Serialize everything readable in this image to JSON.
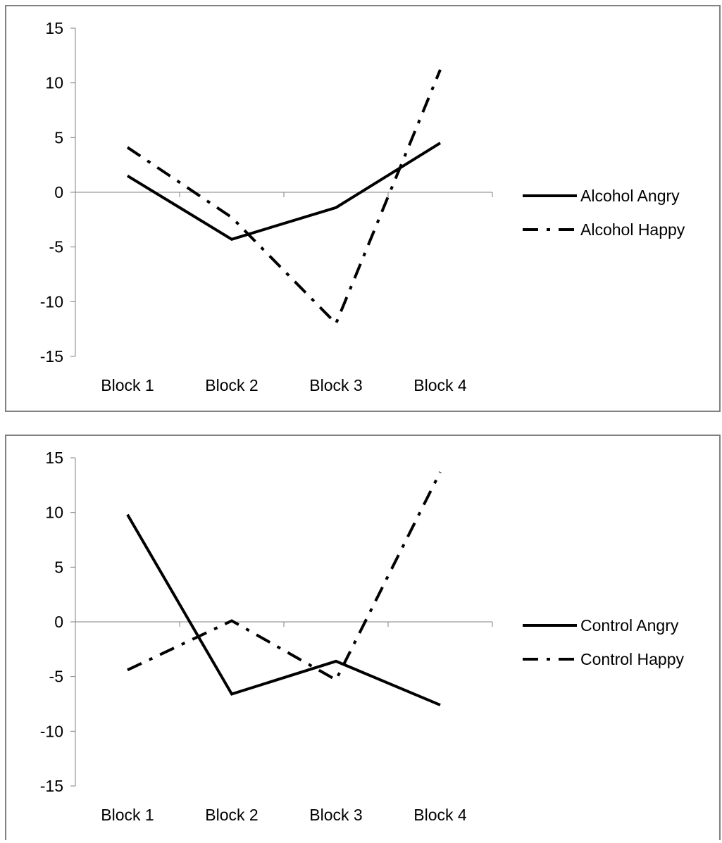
{
  "chart_data": [
    {
      "type": "line",
      "categories": [
        "Block 1",
        "Block 2",
        "Block 3",
        "Block 4"
      ],
      "ylim": [
        -15,
        15
      ],
      "yticks": [
        15,
        10,
        5,
        0,
        -5,
        -10,
        -15
      ],
      "grid": false,
      "legend_position": "right",
      "series": [
        {
          "name": "Alcohol Angry",
          "style": "solid",
          "color": "#000000",
          "values": [
            1.5,
            -4.3,
            -1.4,
            4.5
          ]
        },
        {
          "name": "Alcohol Happy",
          "style": "dash-dot",
          "color": "#000000",
          "values": [
            4.1,
            -2.3,
            -12.0,
            11.2
          ]
        }
      ]
    },
    {
      "type": "line",
      "categories": [
        "Block 1",
        "Block 2",
        "Block 3",
        "Block 4"
      ],
      "ylim": [
        -15,
        15
      ],
      "yticks": [
        15,
        10,
        5,
        0,
        -5,
        -10,
        -15
      ],
      "grid": false,
      "legend_position": "right",
      "series": [
        {
          "name": "Control Angry",
          "style": "solid",
          "color": "#000000",
          "values": [
            9.8,
            -6.6,
            -3.6,
            -7.6
          ]
        },
        {
          "name": "Control Happy",
          "style": "dash-dot",
          "color": "#000000",
          "values": [
            -4.4,
            0.1,
            -5.3,
            13.7
          ]
        }
      ]
    }
  ],
  "colors": {
    "axis": "#808080",
    "line": "#000000"
  }
}
